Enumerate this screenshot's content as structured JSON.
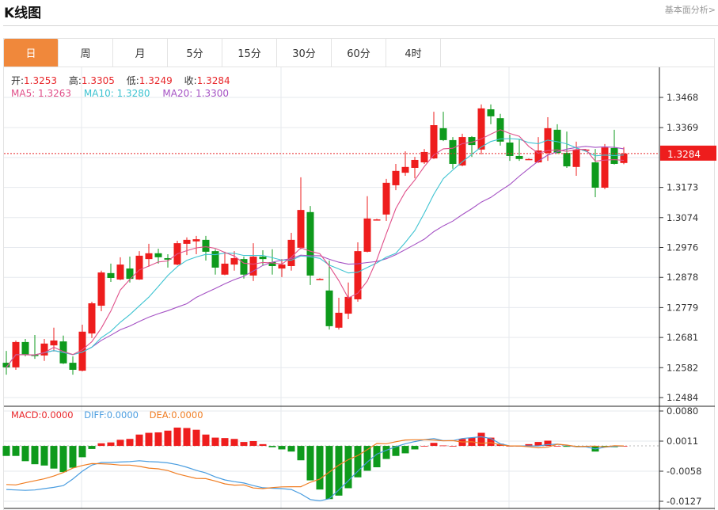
{
  "header": {
    "title": "K线图",
    "link": "基本面分析>"
  },
  "tabs": [
    "日",
    "周",
    "月",
    "5分",
    "15分",
    "30分",
    "60分",
    "4时"
  ],
  "active_tab": "日",
  "ohlc": {
    "open_label": "开:",
    "open": "1.3253",
    "high_label": "高:",
    "high": "1.3305",
    "low_label": "低:",
    "low": "1.3249",
    "close_label": "收:",
    "close": "1.3284"
  },
  "ma": {
    "ma5": "MA5: 1.3263",
    "ma10": "MA10: 1.3280",
    "ma20": "MA20: 1.3300"
  },
  "macd_legend": {
    "macd": "MACD:0.0000",
    "diff": "DIFF:0.0000",
    "dea": "DEA:0.0000"
  },
  "current_price": "1.3284",
  "colors": {
    "up": "#ee1d1d",
    "down": "#0e9a1c",
    "ma5": "#e0508a",
    "ma10": "#3dc3d1",
    "ma20": "#a552c4",
    "diff": "#4a9de0",
    "dea": "#f07d22",
    "tab_active": "#f0883b"
  },
  "chart_data": [
    {
      "type": "candlestick",
      "ylim": [
        1.2484,
        1.3468
      ],
      "y_ticks": [
        "1.3468",
        "1.3369",
        "1.3173",
        "1.3074",
        "1.2976",
        "1.2878",
        "1.2779",
        "1.2681",
        "1.2582",
        "1.2484"
      ],
      "candles_ohlc": [
        [
          1.2598,
          1.2637,
          1.2559,
          1.2583
        ],
        [
          1.2583,
          1.2671,
          1.2575,
          1.2666
        ],
        [
          1.2666,
          1.2676,
          1.2619,
          1.2624
        ],
        [
          1.2624,
          1.2689,
          1.2611,
          1.2622
        ],
        [
          1.2622,
          1.2676,
          1.2604,
          1.2661
        ],
        [
          1.2655,
          1.2713,
          1.2635,
          1.2671
        ],
        [
          1.2668,
          1.2687,
          1.2594,
          1.2596
        ],
        [
          1.2598,
          1.2619,
          1.2559,
          1.2575
        ],
        [
          1.2572,
          1.2723,
          1.257,
          1.27
        ],
        [
          1.2694,
          1.2798,
          1.2679,
          1.2793
        ],
        [
          1.2785,
          1.29,
          1.2767,
          1.2894
        ],
        [
          1.2892,
          1.2923,
          1.2863,
          1.2876
        ],
        [
          1.2871,
          1.2944,
          1.2869,
          1.292
        ],
        [
          1.2907,
          1.2946,
          1.2861,
          1.2873
        ],
        [
          1.2871,
          1.2964,
          1.287,
          1.2949
        ],
        [
          1.2938,
          1.2988,
          1.2913,
          1.2957
        ],
        [
          1.2957,
          1.2972,
          1.2923,
          1.2944
        ],
        [
          1.2941,
          1.2954,
          1.291,
          1.2936
        ],
        [
          1.292,
          1.2998,
          1.2918,
          1.299
        ],
        [
          1.2988,
          1.3009,
          1.2951,
          1.3001
        ],
        [
          1.2996,
          1.3014,
          1.2954,
          1.3003
        ],
        [
          1.3001,
          1.3014,
          1.2933,
          1.2962
        ],
        [
          1.2964,
          1.297,
          1.2887,
          1.291
        ],
        [
          1.2887,
          1.2962,
          1.2885,
          1.2923
        ],
        [
          1.292,
          1.2964,
          1.29,
          1.2941
        ],
        [
          1.2938,
          1.2946,
          1.2874,
          1.2887
        ],
        [
          1.2884,
          1.299,
          1.2866,
          1.2946
        ],
        [
          1.2946,
          1.2967,
          1.2918,
          1.2938
        ],
        [
          1.2928,
          1.297,
          1.2887,
          1.2915
        ],
        [
          1.2907,
          1.2938,
          1.2879,
          1.292
        ],
        [
          1.2915,
          1.3024,
          1.29,
          1.3001
        ],
        [
          1.2975,
          1.3206,
          1.297,
          1.3099
        ],
        [
          1.3092,
          1.3112,
          1.2853,
          1.2884
        ],
        [
          1.2872,
          1.2875,
          1.2871,
          1.2873
        ],
        [
          1.2835,
          1.2933,
          1.2707,
          1.2718
        ],
        [
          1.2713,
          1.2811,
          1.2707,
          1.2762
        ],
        [
          1.2759,
          1.2861,
          1.2741,
          1.2814
        ],
        [
          1.2806,
          1.2993,
          1.2798,
          1.2964
        ],
        [
          1.2962,
          1.3144,
          1.296,
          1.3071
        ],
        [
          1.3067,
          1.307,
          1.3066,
          1.3068
        ],
        [
          1.3084,
          1.3201,
          1.3063,
          1.3188
        ],
        [
          1.318,
          1.325,
          1.3164,
          1.3227
        ],
        [
          1.3221,
          1.3291,
          1.3211,
          1.324
        ],
        [
          1.3237,
          1.3273,
          1.3203,
          1.3263
        ],
        [
          1.3255,
          1.3299,
          1.325,
          1.3289
        ],
        [
          1.3268,
          1.3421,
          1.3266,
          1.3377
        ],
        [
          1.3367,
          1.3421,
          1.3325,
          1.3328
        ],
        [
          1.3328,
          1.3338,
          1.3234,
          1.325
        ],
        [
          1.3245,
          1.3349,
          1.3242,
          1.3338
        ],
        [
          1.3338,
          1.3341,
          1.3273,
          1.3312
        ],
        [
          1.3297,
          1.3445,
          1.3281,
          1.3432
        ],
        [
          1.3429,
          1.3445,
          1.338,
          1.3406
        ],
        [
          1.34,
          1.3414,
          1.331,
          1.3323
        ],
        [
          1.332,
          1.3346,
          1.326,
          1.3276
        ],
        [
          1.3276,
          1.333,
          1.326,
          1.3266
        ],
        [
          1.3265,
          1.3268,
          1.3264,
          1.3266
        ],
        [
          1.3255,
          1.3338,
          1.3253,
          1.3294
        ],
        [
          1.3286,
          1.3403,
          1.326,
          1.3367
        ],
        [
          1.3362,
          1.338,
          1.3283,
          1.3286
        ],
        [
          1.3286,
          1.3356,
          1.3237,
          1.3242
        ],
        [
          1.324,
          1.3323,
          1.3211,
          1.3297
        ],
        [
          1.3296,
          1.3299,
          1.3295,
          1.3297
        ],
        [
          1.3255,
          1.3299,
          1.3141,
          1.3172
        ],
        [
          1.3172,
          1.3315,
          1.3167,
          1.3304
        ],
        [
          1.3302,
          1.3362,
          1.3248,
          1.325
        ],
        [
          1.3253,
          1.3305,
          1.3249,
          1.3284
        ]
      ],
      "moving_averages": [
        "MA5",
        "MA10",
        "MA20"
      ]
    },
    {
      "type": "bar+line",
      "ylim": [
        -0.0127,
        0.008
      ],
      "y_ticks": [
        "0.0080",
        "0.0011",
        "-0.0058",
        "-0.0127"
      ],
      "macd": [
        -0.0023,
        -0.0023,
        -0.0035,
        -0.0042,
        -0.0045,
        -0.0052,
        -0.006,
        -0.005,
        -0.0026,
        -0.0007,
        0.0006,
        0.0008,
        0.0014,
        0.0016,
        0.0026,
        0.003,
        0.0031,
        0.0035,
        0.0042,
        0.0041,
        0.0037,
        0.0026,
        0.0019,
        0.0018,
        0.0016,
        0.0009,
        0.0011,
        0.0004,
        -0.0003,
        -0.0008,
        -0.0013,
        -0.0033,
        -0.0079,
        -0.01,
        -0.0122,
        -0.0114,
        -0.0097,
        -0.0072,
        -0.0057,
        -0.0049,
        -0.003,
        -0.0023,
        -0.0017,
        -0.0008,
        0.0,
        0.0007,
        0.0001,
        0.0,
        0.0016,
        0.0019,
        0.003,
        0.0019,
        0.0005,
        0.0,
        0.0,
        0.0004,
        0.0009,
        0.0012,
        0.0,
        -0.0002,
        -0.0001,
        -0.0002,
        -0.0013,
        -0.0001,
        -0.0003,
        0.0
      ],
      "diff": [
        -0.01,
        -0.0101,
        -0.0102,
        -0.0101,
        -0.0098,
        -0.0095,
        -0.0091,
        -0.0076,
        -0.0058,
        -0.0044,
        -0.0038,
        -0.0038,
        -0.0037,
        -0.0036,
        -0.0034,
        -0.0036,
        -0.0037,
        -0.0039,
        -0.0043,
        -0.0049,
        -0.0056,
        -0.0062,
        -0.0071,
        -0.0078,
        -0.0082,
        -0.0085,
        -0.0091,
        -0.0096,
        -0.0097,
        -0.0098,
        -0.01,
        -0.011,
        -0.0123,
        -0.0126,
        -0.0121,
        -0.0101,
        -0.008,
        -0.0058,
        -0.0037,
        -0.0019,
        -0.001,
        -0.0002,
        0.0005,
        0.001,
        0.0014,
        0.0017,
        0.0012,
        0.0012,
        0.0017,
        0.0019,
        0.0021,
        0.0017,
        0.0005,
        0.0,
        0.0,
        0.0,
        0.0,
        0.0003,
        0.0004,
        0.0001,
        -0.0002,
        -0.0002,
        -0.0007,
        -0.0003,
        -0.0001,
        0.0
      ]
    }
  ]
}
